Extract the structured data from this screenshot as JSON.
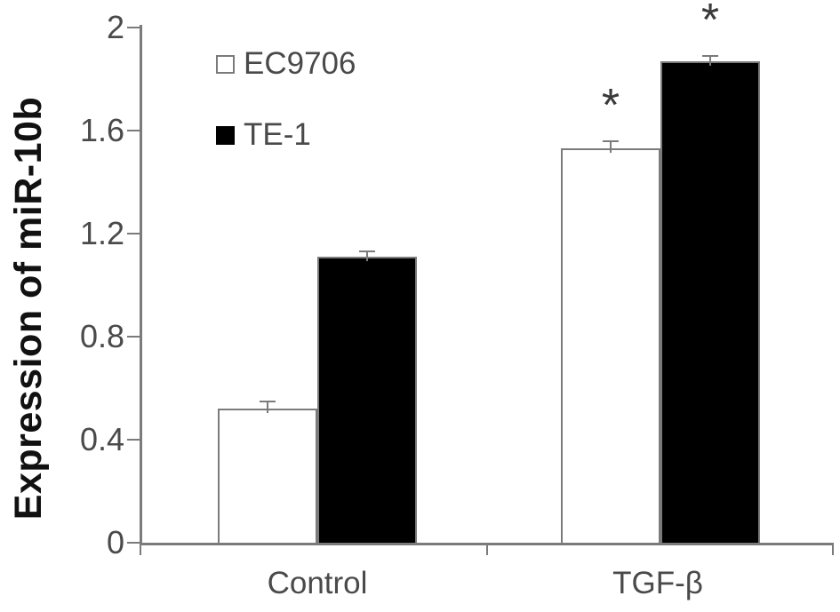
{
  "figure": {
    "background": "#ffffff"
  },
  "chart_data": {
    "type": "bar",
    "title": "",
    "xlabel": "",
    "ylabel": "Expression of miR-10b",
    "categories": [
      "Control",
      "TGF-β"
    ],
    "series": [
      {
        "name": "EC9706",
        "fill": "#ffffff",
        "values": [
          0.52,
          1.53
        ],
        "errors": [
          0.03,
          0.03
        ],
        "significance": [
          "",
          "*"
        ]
      },
      {
        "name": "TE-1",
        "fill": "#000000",
        "values": [
          1.11,
          1.87
        ],
        "errors": [
          0.02,
          0.02
        ],
        "significance": [
          "",
          "*"
        ]
      }
    ],
    "ylim": [
      0,
      2
    ],
    "yticks": [
      0,
      0.4,
      0.8,
      1.2,
      1.6,
      2
    ],
    "ytick_labels": [
      "0",
      "0.4",
      "0.8",
      "1.2",
      "1.6",
      "2"
    ],
    "grid": false,
    "error_bars": true,
    "legend_position": "upper-left-inside"
  },
  "legend": {
    "items": [
      {
        "label": "EC9706",
        "swatch": "open-square"
      },
      {
        "label": "TE-1",
        "swatch": "filled-square"
      }
    ]
  },
  "colors": {
    "axis": "#7b7b7b",
    "tick_text": "#4a4a4a",
    "title_text": "#111111",
    "bar_border": "#7b7b7b",
    "significance": "#3a3a3a"
  }
}
